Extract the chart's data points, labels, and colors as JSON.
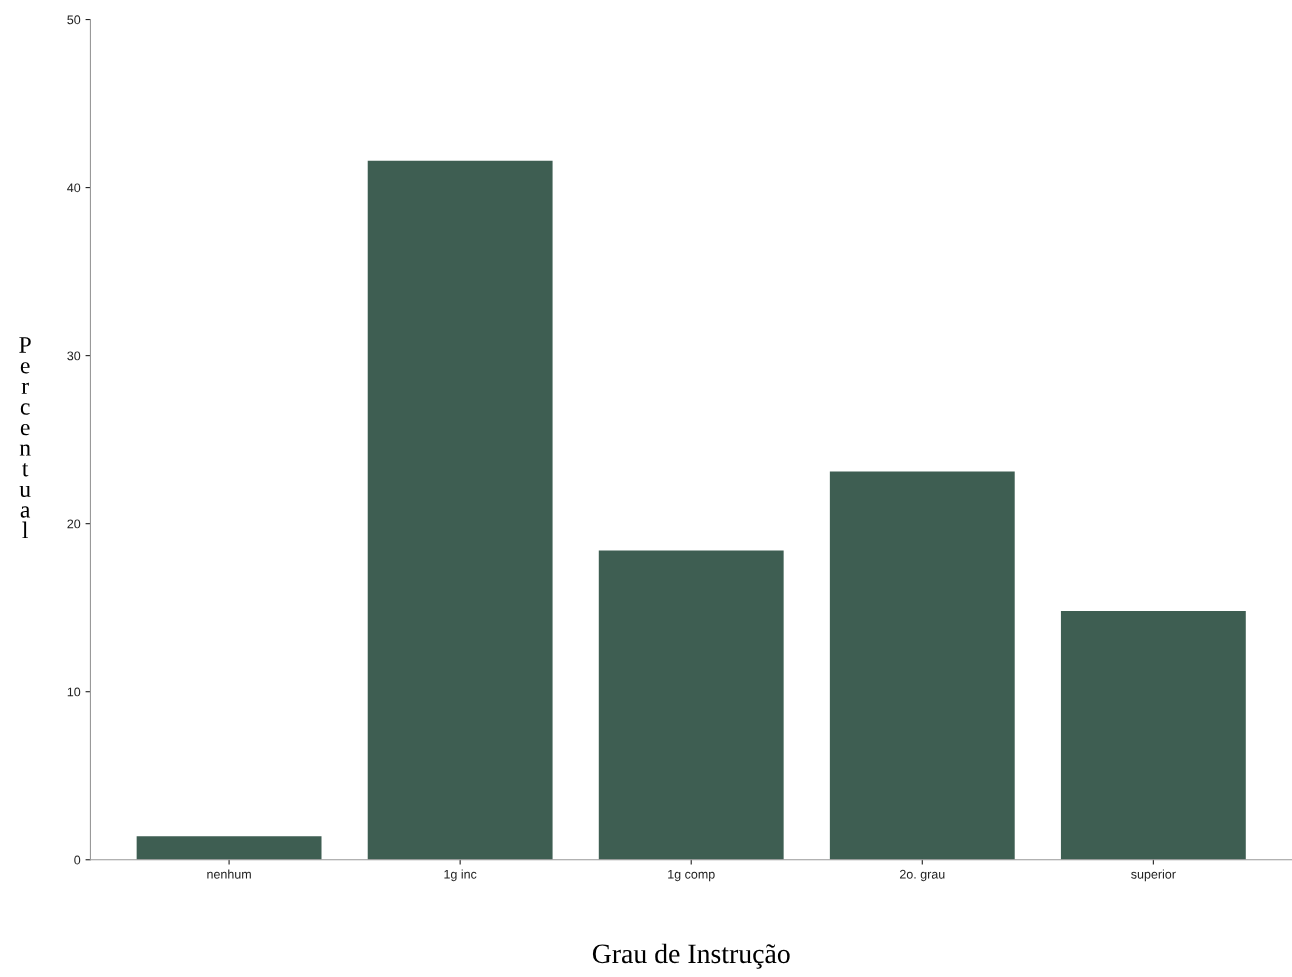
{
  "chart_data": {
    "type": "bar",
    "xlabel": "Grau de Instrução",
    "ylabel": "Percentual",
    "categories": [
      "nenhum",
      "1g inc",
      "1g comp",
      "2o. grau",
      "superior"
    ],
    "values": [
      1.4,
      41.6,
      18.4,
      23.1,
      14.8
    ],
    "color": "#3e5e52",
    "ylim": [
      0,
      50
    ],
    "yticks": [
      0,
      10,
      20,
      30,
      40,
      50
    ],
    "grid": false,
    "legend": false
  }
}
